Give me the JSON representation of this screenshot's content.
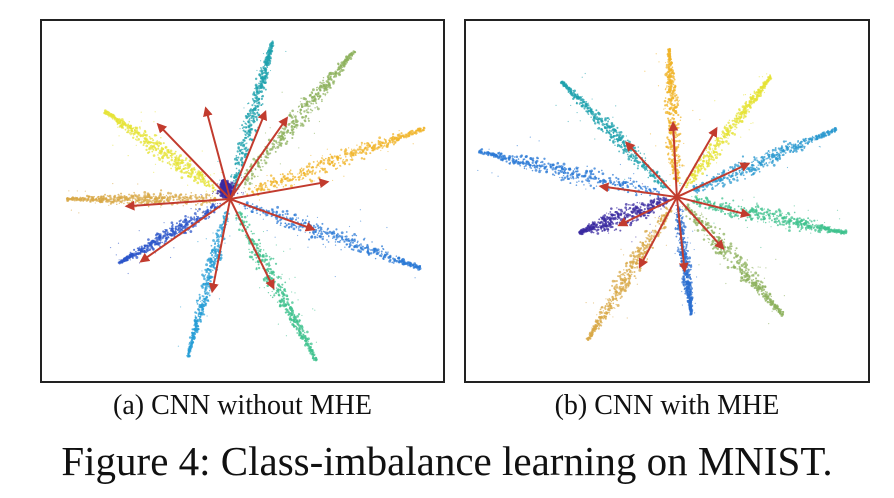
{
  "figure": {
    "caption": "Figure 4: Class-imbalance learning on MNIST."
  },
  "panels": [
    {
      "id": "a",
      "label": "(a) CNN without MHE",
      "clusters": [
        {
          "angle": -75,
          "length": 165,
          "width": 9,
          "color": "#1fa2ad"
        },
        {
          "angle": -50,
          "length": 195,
          "width": 12,
          "color": "#8eb25e"
        },
        {
          "angle": -20,
          "length": 210,
          "width": 11,
          "color": "#f0b429"
        },
        {
          "angle": 20,
          "length": 205,
          "width": 12,
          "color": "#2b7ad6"
        },
        {
          "angle": 62,
          "length": 185,
          "width": 11,
          "color": "#3fc28d"
        },
        {
          "angle": 105,
          "length": 165,
          "width": 8,
          "color": "#279ed6"
        },
        {
          "angle": 150,
          "length": 130,
          "width": 9,
          "color": "#2c55c9"
        },
        {
          "angle": 180,
          "length": 165,
          "width": 9,
          "color": "#d8a847"
        },
        {
          "angle": -145,
          "length": 155,
          "width": 11,
          "color": "#e6e336"
        },
        {
          "angle": -110,
          "length": 20,
          "width": 10,
          "color": "#3a2aa0"
        }
      ],
      "arrows": [
        {
          "angle": -105,
          "length": 95
        },
        {
          "angle": -68,
          "length": 95
        },
        {
          "angle": -55,
          "length": 100
        },
        {
          "angle": -10,
          "length": 100
        },
        {
          "angle": 20,
          "length": 90
        },
        {
          "angle": 64,
          "length": 100
        },
        {
          "angle": 101,
          "length": 95
        },
        {
          "angle": 145,
          "length": 110
        },
        {
          "angle": 176,
          "length": 105
        },
        {
          "angle": -134,
          "length": 105
        }
      ]
    },
    {
      "id": "b",
      "label": "(b) CNN with MHE",
      "clusters": [
        {
          "angle": -93,
          "length": 150,
          "width": 10,
          "color": "#f0b429"
        },
        {
          "angle": -52,
          "length": 155,
          "width": 9,
          "color": "#e6e336"
        },
        {
          "angle": -23,
          "length": 175,
          "width": 11,
          "color": "#2a98cf"
        },
        {
          "angle": 12,
          "length": 175,
          "width": 11,
          "color": "#3fc28d"
        },
        {
          "angle": 48,
          "length": 160,
          "width": 11,
          "color": "#8eb25e"
        },
        {
          "angle": 83,
          "length": 120,
          "width": 7,
          "color": "#2b6fd0"
        },
        {
          "angle": 122,
          "length": 170,
          "width": 11,
          "color": "#d8a847"
        },
        {
          "angle": 160,
          "length": 105,
          "width": 13,
          "color": "#3a2aa0"
        },
        {
          "angle": -167,
          "length": 205,
          "width": 12,
          "color": "#2b7ad6"
        },
        {
          "angle": -135,
          "length": 165,
          "width": 10,
          "color": "#1fa2ad"
        }
      ],
      "arrows": [
        {
          "angle": -93,
          "length": 75
        },
        {
          "angle": -60,
          "length": 80
        },
        {
          "angle": -25,
          "length": 80
        },
        {
          "angle": 14,
          "length": 75
        },
        {
          "angle": 48,
          "length": 70
        },
        {
          "angle": 84,
          "length": 75
        },
        {
          "angle": 118,
          "length": 80
        },
        {
          "angle": 154,
          "length": 65
        },
        {
          "angle": -172,
          "length": 78
        },
        {
          "angle": -133,
          "length": 75
        }
      ]
    }
  ],
  "arrow_color": "#c23b2e"
}
